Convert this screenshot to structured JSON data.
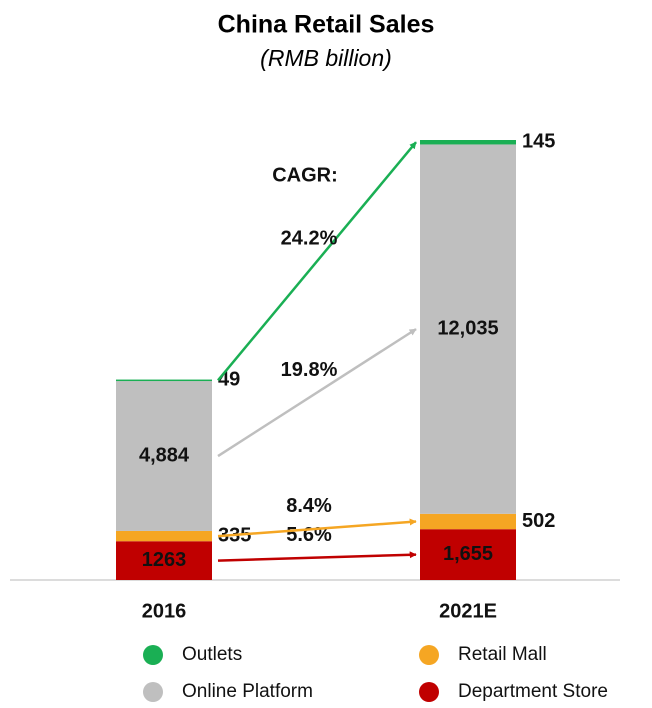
{
  "chart_data": {
    "type": "stacked-bar",
    "title": "China Retail Sales",
    "subtitle": "(RMB billion)",
    "categories": [
      "2016",
      "2021E"
    ],
    "annotation": "CAGR:",
    "series": [
      {
        "name": "Department Store",
        "color": "#c00000",
        "values": [
          1263,
          1655
        ],
        "value_labels": [
          "1263",
          "1,655"
        ],
        "cagr": "5.6%"
      },
      {
        "name": "Retail Mall",
        "color": "#f5a623",
        "values": [
          335,
          502
        ],
        "value_labels": [
          "335",
          "502"
        ],
        "cagr": "8.4%"
      },
      {
        "name": "Online Platform",
        "color": "#bfbfbf",
        "values": [
          4884,
          12035
        ],
        "value_labels": [
          "4,884",
          "12,035"
        ],
        "cagr": "19.8%"
      },
      {
        "name": "Outlets",
        "color": "#1aaf54",
        "values": [
          49,
          145
        ],
        "value_labels": [
          "49",
          "145"
        ],
        "cagr": "24.2%"
      }
    ]
  }
}
